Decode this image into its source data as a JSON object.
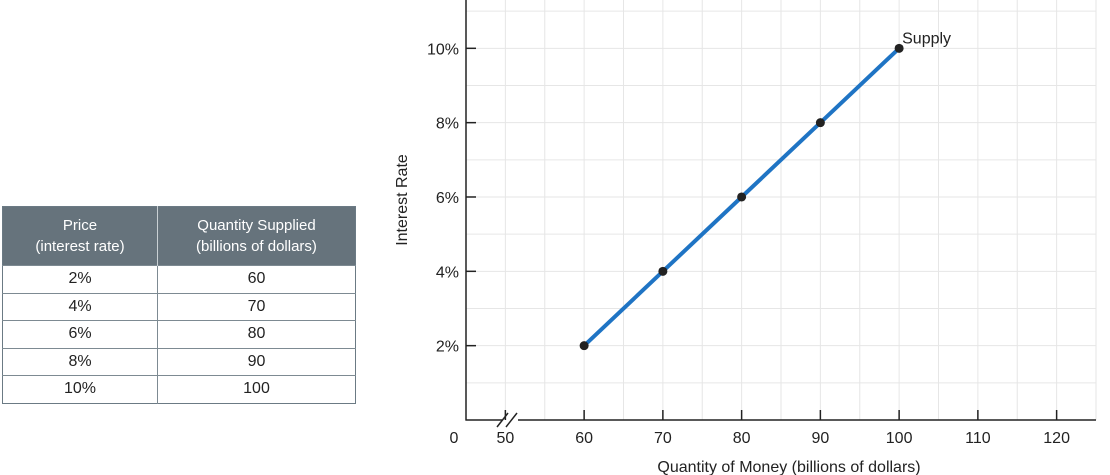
{
  "table": {
    "headers": {
      "price": [
        "Price",
        "(interest rate)"
      ],
      "quantity": [
        "Quantity Supplied",
        "(billions of dollars)"
      ]
    },
    "rows": [
      {
        "price": "2%",
        "quantity": "60"
      },
      {
        "price": "4%",
        "quantity": "70"
      },
      {
        "price": "6%",
        "quantity": "80"
      },
      {
        "price": "8%",
        "quantity": "90"
      },
      {
        "price": "10%",
        "quantity": "100"
      }
    ]
  },
  "chart_data": {
    "type": "line",
    "title": "",
    "xlabel": "Quantity of Money (billions of dollars)",
    "ylabel": "Interest Rate",
    "origin_label": "0",
    "axis_break": true,
    "xlim": [
      45,
      125
    ],
    "ylim": [
      0,
      11.3
    ],
    "x_ticks": [
      50,
      60,
      70,
      80,
      90,
      100,
      110,
      120
    ],
    "x_tick_labels": [
      "50",
      "60",
      "70",
      "80",
      "90",
      "100",
      "110",
      "120"
    ],
    "y_ticks": [
      2,
      4,
      6,
      8,
      10
    ],
    "y_tick_labels": [
      "2%",
      "4%",
      "6%",
      "8%",
      "10%"
    ],
    "grid": true,
    "series": [
      {
        "name": "Supply",
        "color": "#1f74c4",
        "x": [
          60,
          70,
          80,
          90,
          100
        ],
        "y": [
          2,
          4,
          6,
          8,
          10
        ]
      }
    ],
    "colors": {
      "line": "#1f74c4",
      "point": "#222222",
      "grid": "#e6e6e6",
      "axis": "#222222",
      "table_header": "#66737c"
    }
  }
}
